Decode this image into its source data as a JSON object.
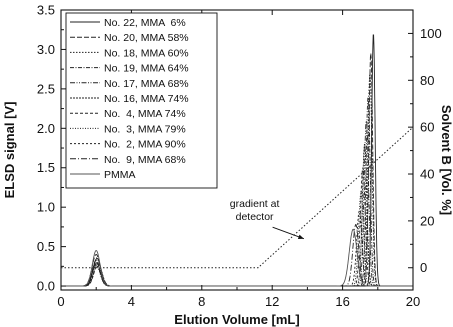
{
  "chart_data": {
    "type": "line",
    "xlabel": "Elution Volume [mL]",
    "ylabel": "ELSD signal [V]",
    "y2label": "Solvent B [Vol. %]",
    "xlim": [
      0,
      20
    ],
    "ylim": [
      -0.05,
      3.5
    ],
    "y2lim": [
      -9.5,
      110
    ],
    "xticks": [
      "0",
      "4",
      "8",
      "12",
      "16",
      "20"
    ],
    "yticks": [
      "0.0",
      "0.5",
      "1.0",
      "1.5",
      "2.0",
      "2.5",
      "3.0",
      "3.5"
    ],
    "y2ticks": [
      "0",
      "20",
      "40",
      "60",
      "80",
      "100"
    ],
    "grid": false,
    "legend_position": "top-left",
    "series": [
      {
        "name": "No. 22, MMA  6%",
        "dash": "",
        "peaks": [
          [
            17.75,
            3.2,
            0.1
          ],
          [
            2.05,
            0.35,
            0.22
          ]
        ]
      },
      {
        "name": "No. 20, MMA 58%",
        "dash": "5,2",
        "peaks": [
          [
            17.6,
            2.95,
            0.11
          ],
          [
            2.0,
            0.4,
            0.23
          ]
        ]
      },
      {
        "name": "No. 18, MMA 60%",
        "dash": "1.5,1.5",
        "peaks": [
          [
            17.55,
            2.7,
            0.12
          ],
          [
            2.1,
            0.3,
            0.22
          ]
        ]
      },
      {
        "name": "No. 19, MMA 64%",
        "dash": "4,1.5,1,1.5",
        "peaks": [
          [
            17.45,
            2.4,
            0.12
          ],
          [
            2.0,
            0.33,
            0.22
          ]
        ]
      },
      {
        "name": "No. 17, MMA 68%",
        "dash": "5,1.5,1,1.5,1,1.5",
        "peaks": [
          [
            17.35,
            2.1,
            0.13
          ],
          [
            2.05,
            0.36,
            0.22
          ]
        ]
      },
      {
        "name": "No. 16, MMA 74%",
        "dash": "2,1",
        "peaks": [
          [
            17.25,
            1.8,
            0.13
          ],
          [
            2.0,
            0.3,
            0.22
          ]
        ]
      },
      {
        "name": "No.  4, MMA 74%",
        "dash": "3,2",
        "peaks": [
          [
            17.15,
            1.5,
            0.14
          ],
          [
            2.1,
            0.28,
            0.22
          ]
        ]
      },
      {
        "name": "No.  3, MMA 79%",
        "dash": "1,1.5",
        "peaks": [
          [
            17.05,
            1.2,
            0.14
          ],
          [
            2.0,
            0.26,
            0.22
          ]
        ]
      },
      {
        "name": "No.  2, MMA 90%",
        "dash": "2,2",
        "peaks": [
          [
            16.95,
            0.95,
            0.15
          ],
          [
            2.05,
            0.25,
            0.22
          ]
        ]
      },
      {
        "name": "No.  9, MMA 68%",
        "dash": "6,2,1,2",
        "peaks": [
          [
            16.75,
            0.78,
            0.17
          ],
          [
            2.0,
            0.28,
            0.22
          ]
        ]
      },
      {
        "name": "PMMA",
        "dash": "",
        "peaks": [
          [
            16.6,
            0.72,
            0.22
          ],
          [
            2.0,
            0.45,
            0.22
          ]
        ]
      }
    ],
    "gradient": {
      "axis": "y2",
      "x": [
        0,
        11.2,
        20
      ],
      "y": [
        0,
        0,
        60
      ]
    },
    "annotations": [
      {
        "text": "gradient at detector",
        "lines": [
          "gradient at",
          "detector"
        ],
        "x": 11.0,
        "y": 1.0,
        "arrow_to": [
          13.8,
          0.6
        ]
      }
    ]
  }
}
